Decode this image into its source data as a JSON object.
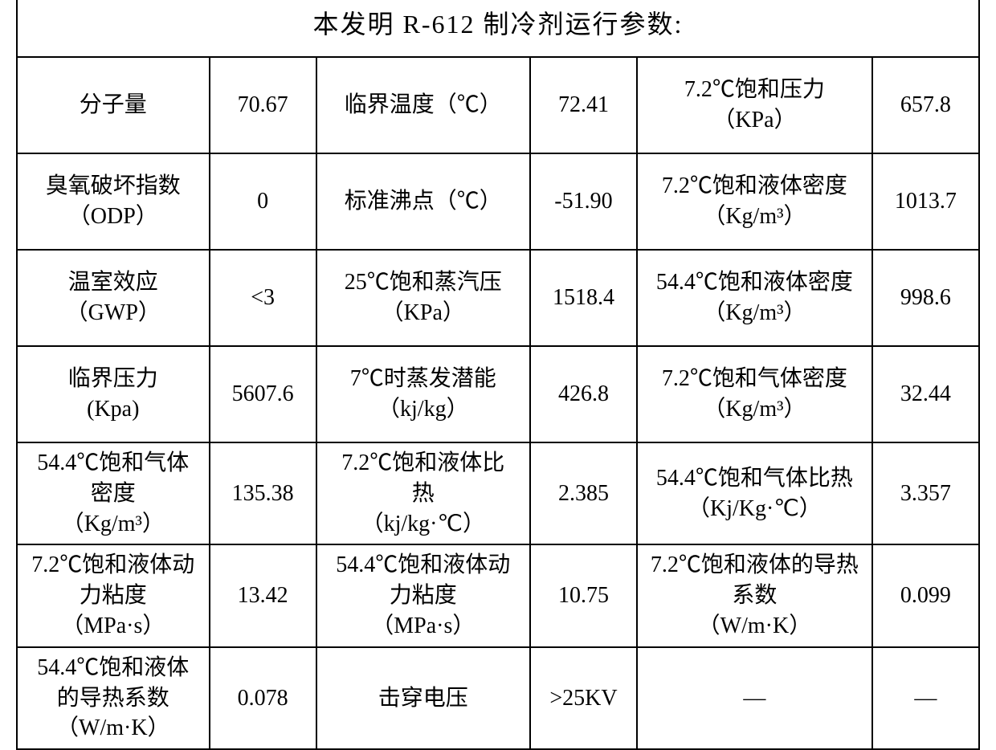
{
  "table": {
    "title": "本发明 R-612 制冷剂运行参数:",
    "background_color": "#ffffff",
    "border_color": "#000000",
    "text_color": "#000000",
    "title_fontsize": 32,
    "cell_fontsize": 28,
    "font_family": "SimSun",
    "columns": [
      "label1",
      "value1",
      "label2",
      "value2",
      "label3",
      "value3"
    ],
    "rows": [
      {
        "label1": "分子量",
        "value1": "70.67",
        "label2": "临界温度（℃）",
        "value2": "72.41",
        "label3": "7.2℃饱和压力\n（KPa）",
        "value3": "657.8"
      },
      {
        "label1": "臭氧破坏指数\n（ODP）",
        "value1": "0",
        "label2": "标准沸点（℃）",
        "value2": "-51.90",
        "label3": "7.2℃饱和液体密度\n（Kg/m³）",
        "value3": "1013.7"
      },
      {
        "label1": "温室效应\n（GWP）",
        "value1": "<3",
        "label2": "25℃饱和蒸汽压\n（KPa）",
        "value2": "1518.4",
        "label3": "54.4℃饱和液体密度\n（Kg/m³）",
        "value3": "998.6"
      },
      {
        "label1": "临界压力\n(Kpa)",
        "value1": "5607.6",
        "label2": "7℃时蒸发潜能\n（kj/kg）",
        "value2": "426.8",
        "label3": "7.2℃饱和气体密度\n（Kg/m³）",
        "value3": "32.44"
      },
      {
        "label1": "54.4℃饱和气体\n密度\n（Kg/m³）",
        "value1": "135.38",
        "label2": "7.2℃饱和液体比\n热\n（kj/kg·℃）",
        "value2": "2.385",
        "label3": "54.4℃饱和气体比热\n（Kj/Kg·℃）",
        "value3": "3.357"
      },
      {
        "label1": "7.2℃饱和液体动\n力粘度\n（MPa·s）",
        "value1": "13.42",
        "label2": "54.4℃饱和液体动\n力粘度\n（MPa·s）",
        "value2": "10.75",
        "label3": "7.2℃饱和液体的导热\n系数\n（W/m·K）",
        "value3": "0.099"
      },
      {
        "label1": "54.4℃饱和液体\n的导热系数\n（W/m·K）",
        "value1": "0.078",
        "label2": "击穿电压",
        "value2": ">25KV",
        "label3": "—",
        "value3": "—"
      }
    ]
  }
}
